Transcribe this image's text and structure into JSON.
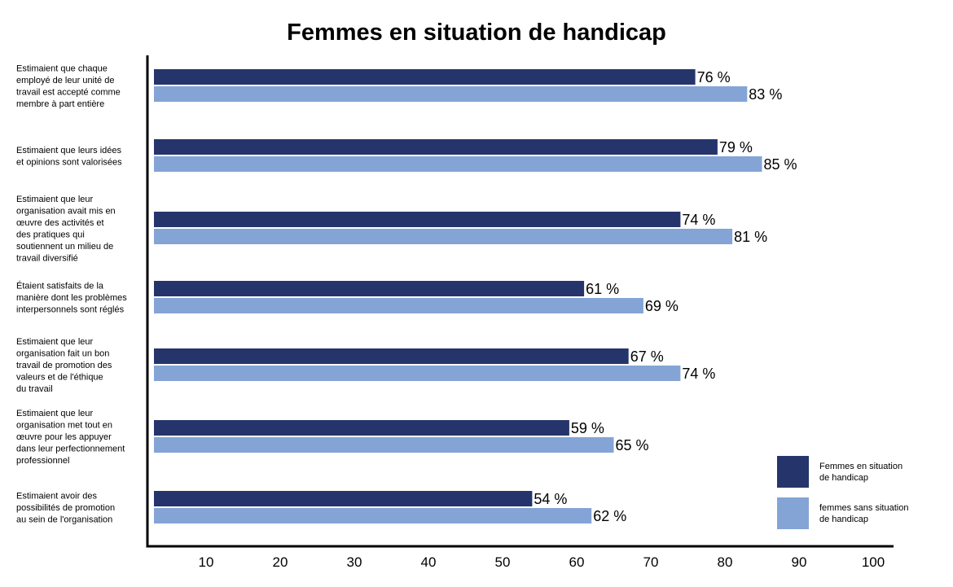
{
  "chart_data": {
    "type": "bar",
    "orientation": "horizontal",
    "title": "Femmes en situation de handicap",
    "xlabel": "",
    "ylabel": "",
    "xlim": [
      0,
      100
    ],
    "x_ticks": [
      10,
      20,
      30,
      40,
      50,
      60,
      70,
      80,
      90,
      100
    ],
    "grid": false,
    "legend_position": "bottom-right",
    "value_suffix": " %",
    "categories": [
      [
        "Estimaient que chaque",
        "employé de leur unité de",
        "travail est accepté comme",
        "membre à part entière"
      ],
      [
        "Estimaient que leurs idées",
        "et opinions sont valorisées"
      ],
      [
        "Estimaient que leur",
        "organisation avait mis en",
        "œuvre des activités et",
        "des pratiques qui",
        "soutiennent un milieu de",
        "travail diversifié"
      ],
      [
        "Étaient satisfaits de la",
        "manière dont les problèmes",
        "interpersonnels sont réglés"
      ],
      [
        "Estimaient que leur",
        "organisation fait un bon",
        "travail de promotion des",
        "valeurs et de l'éthique",
        "du travail"
      ],
      [
        "Estimaient que leur",
        "organisation met tout en",
        "œuvre pour les appuyer",
        "dans leur perfectionnement",
        "professionnel"
      ],
      [
        "Estimaient avoir des",
        "possibilités de promotion",
        "au sein de l'organisation"
      ]
    ],
    "series": [
      {
        "name": [
          "Femmes en situation",
          "de handicap"
        ],
        "color": "#25356b",
        "values": [
          76,
          79,
          74,
          61,
          67,
          59,
          54
        ]
      },
      {
        "name": [
          "femmes sans situation",
          "de handicap"
        ],
        "color": "#84a4d6",
        "values": [
          83,
          85,
          81,
          69,
          74,
          65,
          62
        ]
      }
    ]
  }
}
